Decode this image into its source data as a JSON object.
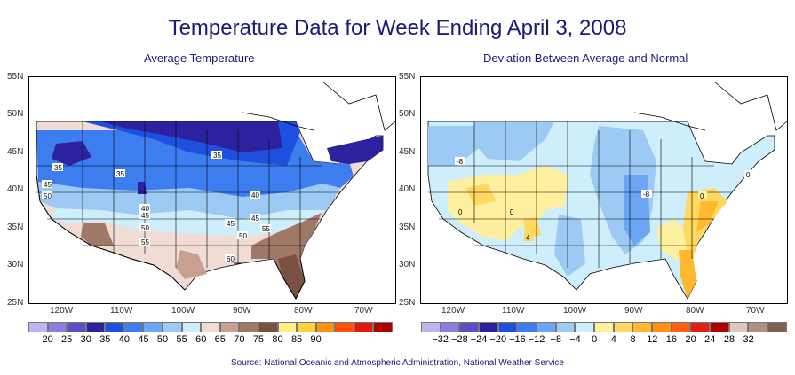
{
  "title": "Temperature Data for Week Ending April 3, 2008",
  "source": "Source:  National Oceanic and Atmospheric Administration, National Weather Service",
  "maps": [
    {
      "subtitle": "Average Temperature",
      "lat_labels": [
        "55N",
        "50N",
        "45N",
        "40N",
        "35N",
        "30N",
        "25N"
      ],
      "lon_labels": [
        "120W",
        "110W",
        "100W",
        "90W",
        "80W",
        "70W"
      ],
      "colorbar": {
        "colors": [
          "#c0b4f0",
          "#8a7ee0",
          "#5a4ec8",
          "#2c22a0",
          "#1e50e0",
          "#3c7ef0",
          "#6aa6f4",
          "#9ccaf4",
          "#cdeefa",
          "#f0dcd4",
          "#c8a090",
          "#a07868",
          "#7a5040",
          "#fff080",
          "#ffd040",
          "#ff9010",
          "#ff5010",
          "#e01a10",
          "#b00000"
        ],
        "labels": [
          "20",
          "25",
          "30",
          "35",
          "40",
          "45",
          "50",
          "55",
          "60",
          "65",
          "70",
          "75",
          "80",
          "85",
          "90"
        ]
      },
      "contour_labels": [
        "35",
        "35",
        "35",
        "45",
        "50",
        "40",
        "45",
        "50",
        "55",
        "40",
        "45",
        "50",
        "55",
        "45",
        "60"
      ]
    },
    {
      "subtitle": "Deviation Between Average and Normal",
      "lat_labels": [
        "55N",
        "50N",
        "45N",
        "40N",
        "35N",
        "30N",
        "25N"
      ],
      "lon_labels": [
        "120W",
        "110W",
        "100W",
        "90W",
        "80W",
        "70W"
      ],
      "colorbar": {
        "colors": [
          "#c0b4f0",
          "#8a7ee0",
          "#5a4ec8",
          "#2c22a0",
          "#1e50e0",
          "#3c7ef0",
          "#6aa6f4",
          "#9ccaf4",
          "#cdeefa",
          "#fff0a0",
          "#ffd860",
          "#ffb830",
          "#ff9010",
          "#ff6010",
          "#e02010",
          "#b00000",
          "#e0c8c0",
          "#b09080",
          "#806050"
        ],
        "labels": [
          "-32",
          "-28",
          "-24",
          "-20",
          "-16",
          "-12",
          "-8",
          "-4",
          "0",
          "4",
          "8",
          "12",
          "16",
          "20",
          "24",
          "28",
          "32"
        ]
      },
      "contour_labels": [
        "-8",
        "0",
        "0",
        "4",
        "-8",
        "0",
        "0"
      ]
    }
  ]
}
